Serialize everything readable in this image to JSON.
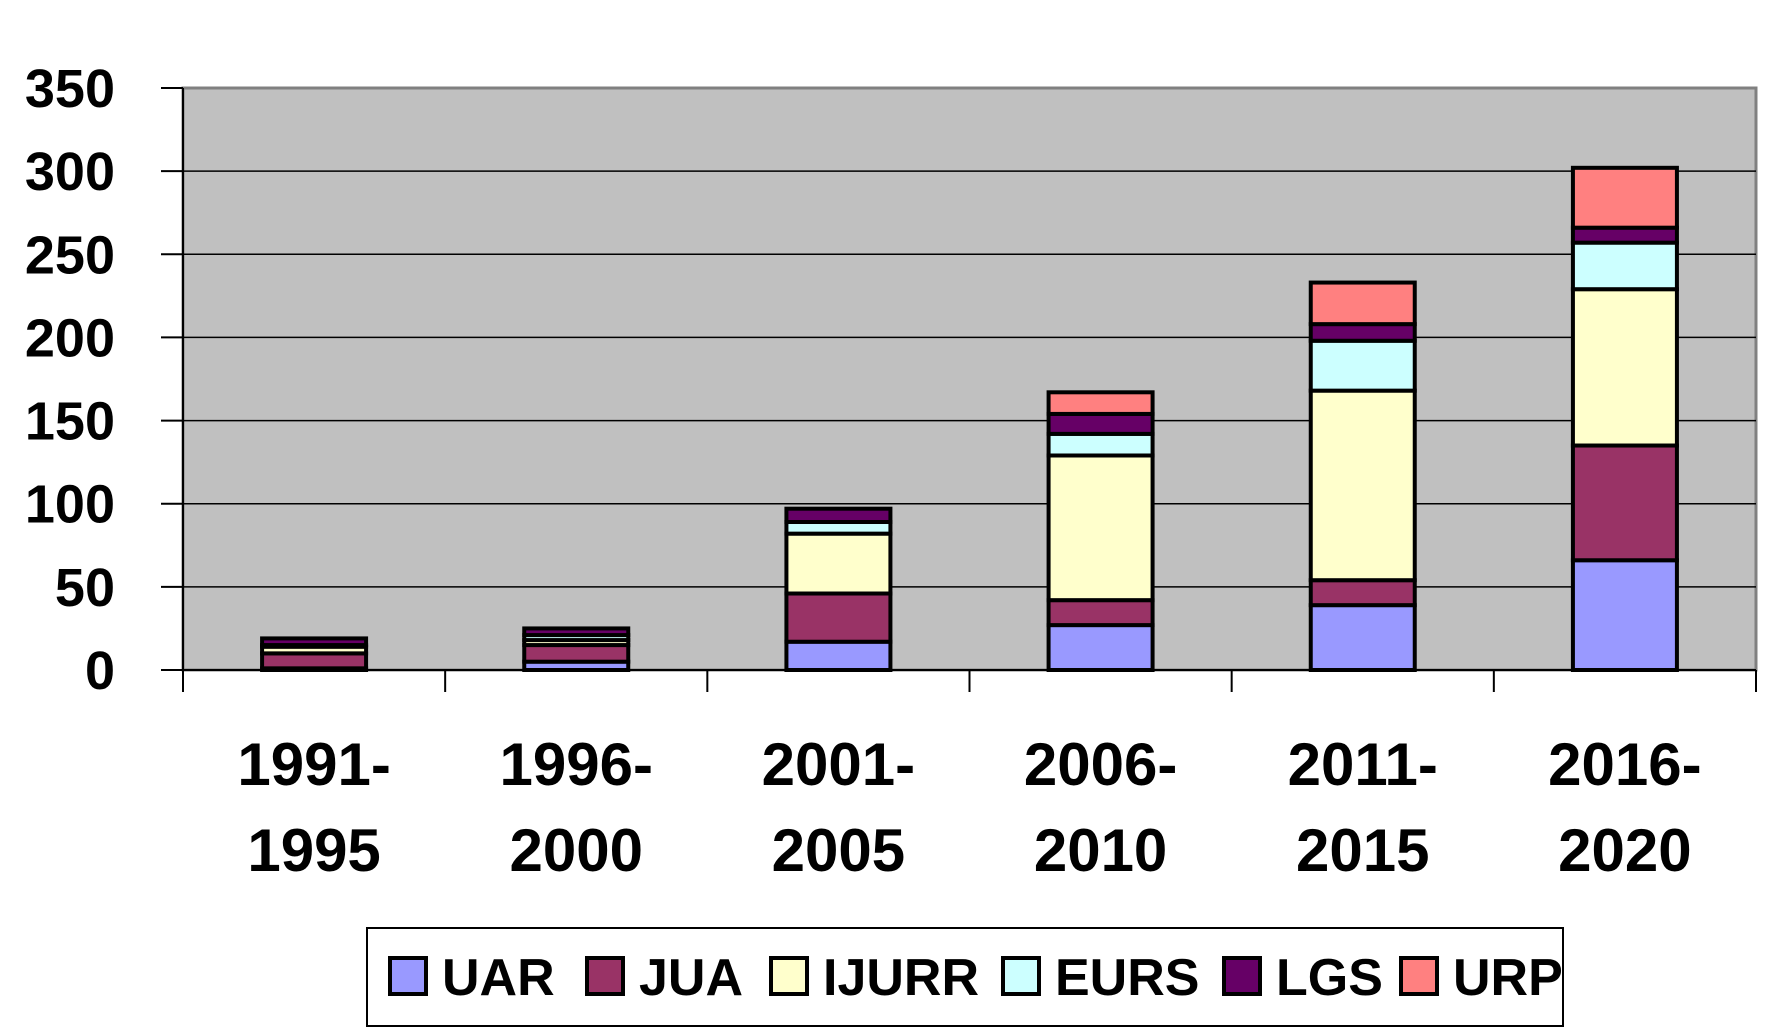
{
  "chart_data": {
    "type": "bar",
    "stacked": true,
    "categories": [
      [
        "1991-",
        "1995"
      ],
      [
        "1996-",
        "2000"
      ],
      [
        "2001-",
        "2005"
      ],
      [
        "2006-",
        "2010"
      ],
      [
        "2011-",
        "2015"
      ],
      [
        "2016-",
        "2020"
      ]
    ],
    "series": [
      {
        "name": "UAR",
        "color": "#9999FF",
        "values": [
          1,
          5,
          17,
          27,
          39,
          66
        ]
      },
      {
        "name": "JUA",
        "color": "#993366",
        "values": [
          9,
          10,
          29,
          15,
          15,
          69
        ]
      },
      {
        "name": "IJURR",
        "color": "#FFFFCC",
        "values": [
          4,
          3,
          36,
          87,
          114,
          94
        ]
      },
      {
        "name": "EURS",
        "color": "#CCFFFF",
        "values": [
          1,
          3,
          7,
          13,
          30,
          28
        ]
      },
      {
        "name": "LGS",
        "color": "#660066",
        "values": [
          4,
          4,
          8,
          12,
          10,
          9
        ]
      },
      {
        "name": "URP",
        "color": "#FF8080",
        "values": [
          0,
          0,
          0,
          13,
          25,
          36
        ]
      }
    ],
    "y_ticks": [
      "0",
      "50",
      "100",
      "150",
      "200",
      "250",
      "300",
      "350"
    ],
    "ylim": [
      0,
      350
    ],
    "title": "",
    "xlabel": "",
    "ylabel": "",
    "grid": true,
    "legend": "bottom",
    "plot_background": "#C0C0C0"
  }
}
